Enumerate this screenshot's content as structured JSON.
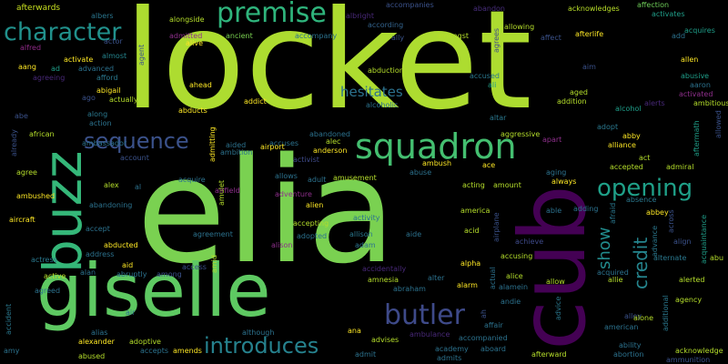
{
  "words": {
    "locket": "locket",
    "elia": "elia",
    "giselle": "giselle",
    "cub": "cub",
    "buzz": "buzz",
    "squadron": "squadron",
    "premise": "premise",
    "character": "character",
    "sequence": "sequence",
    "butler": "butler",
    "introduces": "introduces",
    "opening": "opening",
    "hesitates": "hesitates",
    "credit": "credit",
    "show": "show",
    "afterwards": "afterwards",
    "albers": "albers",
    "alongside": "alongside",
    "admitted": "admitted",
    "ancient": "ancient",
    "albright": "albright",
    "accompanies": "accompanies",
    "abandon": "abandon",
    "acknowledges": "acknowledges",
    "affection": "affection",
    "activates": "activates",
    "alfred": "alfred",
    "actor": "actor",
    "alive": "alive",
    "accompany": "accompany",
    "according": "according",
    "ally": "ally",
    "amongst": "amongst",
    "agrees": "agrees",
    "allowing": "allowing",
    "affect": "affect",
    "afterlife": "afterlife",
    "acquires": "acquires",
    "add": "add",
    "activate": "activate",
    "almost": "almost",
    "agent": "agent",
    "allen": "allen",
    "aang": "aang",
    "ad": "ad",
    "advanced": "advanced",
    "abduction": "abduction",
    "aim": "aim",
    "agreeing": "agreeing",
    "afford": "afford",
    "abusive": "abusive",
    "abigail": "abigail",
    "accused": "accused",
    "ali": "ali",
    "aged": "aged",
    "aaron": "aaron",
    "ahead": "ahead",
    "actually": "actually",
    "addict": "addict",
    "alcoholic": "alcoholic",
    "addition": "addition",
    "activated": "activated",
    "ago": "ago",
    "abducts": "abducts",
    "alcohol": "alcohol",
    "alerts": "alerts",
    "ambitious": "ambitious",
    "abe": "abe",
    "along": "along",
    "action": "action",
    "altar": "altar",
    "adopt": "adopt",
    "already": "already",
    "african": "african",
    "admitting": "admitting",
    "abandoned": "abandoned",
    "aggressive": "aggressive",
    "abby": "abby",
    "alliance": "alliance",
    "allowed": "allowed",
    "aided": "aided",
    "accuses": "accuses",
    "alec": "alec",
    "apart": "apart",
    "aftermath": "aftermath",
    "ambition": "ambition",
    "airport": "airport",
    "anderson": "anderson",
    "act": "act",
    "agree": "agree",
    "ambassador": "ambassador",
    "account": "account",
    "activist": "activist",
    "ambush": "ambush",
    "abuse": "abuse",
    "accepted": "accepted",
    "admiral": "admiral",
    "ambushed": "ambushed",
    "amusement": "amusement",
    "aging": "aging",
    "absence": "absence",
    "allows": "allows",
    "acting": "acting",
    "ace": "ace",
    "always": "always",
    "alex": "alex",
    "al": "al",
    "acquire": "acquire",
    "amulet": "amulet",
    "adult": "adult",
    "amount": "amount",
    "aircraft": "aircraft",
    "abandoning": "abandoning",
    "adventure": "adventure",
    "airfield": "airfield",
    "alien": "alien",
    "america": "america",
    "able": "able",
    "adding": "adding",
    "afraid": "afraid",
    "abbey": "abbey",
    "across": "across",
    "accept": "accept",
    "agreement": "agreement",
    "accepting": "accepting",
    "activity": "activity",
    "airplane": "airplane",
    "aide": "aide",
    "acquaintance": "acquaintance",
    "abducted": "abducted",
    "adopted": "adopted",
    "allison": "allison",
    "acid": "acid",
    "achieve": "achieve",
    "advance": "advance",
    "align": "align",
    "aid": "aid",
    "alison": "alison",
    "adam": "adam",
    "alternate": "alternate",
    "actress": "actress",
    "address": "address",
    "accusing": "accusing",
    "abu": "abu",
    "active": "active",
    "alan": "alan",
    "abruptly": "abruptly",
    "among": "among",
    "access": "access",
    "amid": "amid",
    "accidentally": "accidentally",
    "alpha": "alpha",
    "acquired": "acquired",
    "alerted": "alerted",
    "alter": "alter",
    "alice": "alice",
    "allow": "allow",
    "allie": "allie",
    "amnesia": "amnesia",
    "abraham": "abraham",
    "alarm": "alarm",
    "actual": "actual",
    "alamein": "alamein",
    "agency": "agency",
    "accident": "accident",
    "agreed": "agreed",
    "air": "air",
    "andie": "andie",
    "additional": "additional",
    "advice": "advice",
    "alias": "alias",
    "although": "although",
    "affair": "affair",
    "ah": "ah",
    "alley": "alley",
    "alone": "alone",
    "alexander": "alexander",
    "adoptive": "adoptive",
    "ana": "ana",
    "advises": "advises",
    "ambulance": "ambulance",
    "accompanied": "accompanied",
    "american": "american",
    "ability": "ability",
    "amy": "amy",
    "accepts": "accepts",
    "amends": "amends",
    "academy": "academy",
    "aboard": "aboard",
    "acknowledge": "acknowledge",
    "abused": "abused",
    "admit": "admit",
    "admits": "admits",
    "afterward": "afterward",
    "abortion": "abortion",
    "ammunition": "ammunition"
  }
}
